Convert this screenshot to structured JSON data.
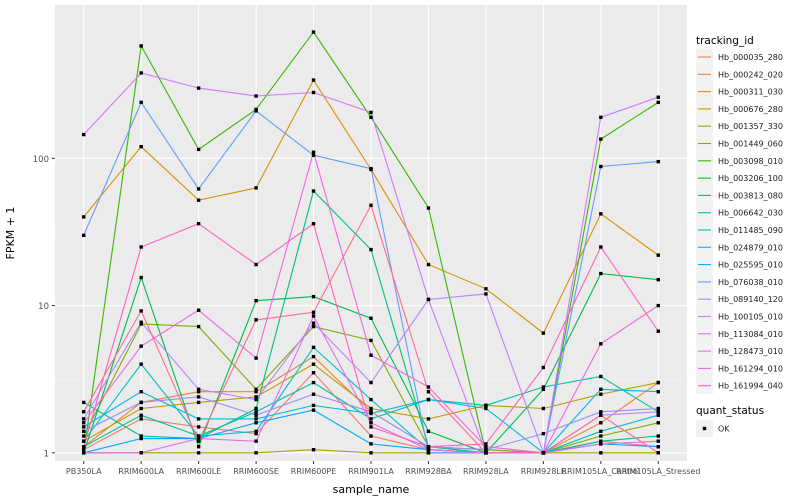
{
  "chart_data": {
    "type": "line",
    "x_label": "sample_name",
    "y_label": "FPKM + 1",
    "y_scale": "log10",
    "y_range": [
      0.88,
      1100
    ],
    "y_ticks": [
      1,
      10,
      100
    ],
    "y_tick_labels": [
      "1",
      "10",
      "100"
    ],
    "categories": [
      "PB350LA",
      "RRIM600LA",
      "RRIM600LE",
      "RRIM600SE",
      "RRIM600PE",
      "RRIM901LA",
      "RRIM928BA",
      "RRIM928LA",
      "RRIM928LE",
      "RRIM105LA_Control",
      "RRIM105LA_Stressed"
    ],
    "category_labels": [
      "PB350LA",
      "RRIM600LA",
      "RRIM600LE",
      "RRIM600SE",
      "RRIM600PE",
      "RRIM901LA",
      "RRIM928BA",
      "RRIM928LA",
      "RRIM928LE",
      "RRIM105LA_Control",
      "RRIM105LA_Stressed"
    ],
    "legend_title": "tracking_id",
    "legend2_title": "quant_status",
    "legend2_entries": [
      "OK"
    ],
    "legend_position": "right",
    "panel_background": "#EBEBEB",
    "grid": true,
    "series": [
      {
        "name": "Hb_000035_280",
        "color": "#F8766D",
        "values": [
          1.05,
          1.7,
          1.5,
          1.35,
          3.5,
          1.3,
          1.05,
          1.0,
          1.0,
          1.2,
          1.1
        ]
      },
      {
        "name": "Hb_000242_020",
        "color": "#EA8331",
        "values": [
          1.1,
          2.2,
          2.6,
          2.6,
          4.5,
          1.9,
          1.1,
          1.05,
          1.0,
          1.6,
          3.0
        ]
      },
      {
        "name": "Hb_000311_030",
        "color": "#D89000",
        "values": [
          40,
          120,
          52,
          63,
          340,
          84,
          19,
          13,
          6.5,
          42,
          22
        ]
      },
      {
        "name": "Hb_000676_280",
        "color": "#C09B00",
        "values": [
          1.2,
          2.0,
          2.2,
          2.4,
          4.0,
          2.0,
          1.7,
          2.1,
          2.0,
          2.5,
          3.0
        ]
      },
      {
        "name": "Hb_001357_330",
        "color": "#A3A500",
        "values": [
          1.0,
          1.0,
          1.0,
          1.0,
          1.05,
          1.0,
          1.0,
          1.0,
          1.0,
          1.0,
          1.0
        ]
      },
      {
        "name": "Hb_001449_060",
        "color": "#7CAE00",
        "values": [
          1.3,
          7.5,
          7.2,
          2.7,
          7.2,
          5.8,
          1.1,
          1.05,
          1.0,
          1.3,
          1.6
        ]
      },
      {
        "name": "Hb_003098_010",
        "color": "#39B600",
        "values": [
          1.0,
          580,
          115,
          215,
          720,
          190,
          46,
          1.0,
          1.0,
          135,
          240
        ]
      },
      {
        "name": "Hb_003206_100",
        "color": "#00BB4E",
        "values": [
          1.0,
          15.5,
          1.1,
          10.8,
          11.5,
          8.2,
          1.4,
          1.0,
          2.7,
          16.5,
          15
        ]
      },
      {
        "name": "Hb_003813_080",
        "color": "#00BF7D",
        "values": [
          2.2,
          1.3,
          1.25,
          2.0,
          60,
          24,
          1.1,
          1.0,
          1.0,
          1.2,
          1.3
        ]
      },
      {
        "name": "Hb_006642_030",
        "color": "#00C1A3",
        "values": [
          1.1,
          1.8,
          1.3,
          1.9,
          3.0,
          1.7,
          2.3,
          2.1,
          2.8,
          3.3,
          1.9
        ]
      },
      {
        "name": "Hb_011485_090",
        "color": "#00BFC4",
        "values": [
          1.2,
          4.0,
          1.3,
          1.4,
          5.2,
          2.3,
          1.05,
          1.0,
          1.0,
          1.4,
          1.8
        ]
      },
      {
        "name": "Hb_024879_010",
        "color": "#00B8E7",
        "values": [
          1.5,
          2.6,
          1.7,
          1.7,
          2.1,
          1.85,
          2.3,
          2.0,
          1.0,
          2.7,
          2.6
        ]
      },
      {
        "name": "Hb_025595_010",
        "color": "#00A9FF",
        "values": [
          1.0,
          1.25,
          1.25,
          1.6,
          1.95,
          1.15,
          1.05,
          1.0,
          1.0,
          1.15,
          1.1
        ]
      },
      {
        "name": "Hb_076038_010",
        "color": "#619CFF",
        "values": [
          30,
          240,
          62,
          210,
          105,
          85,
          1.0,
          1.0,
          1.0,
          88,
          95
        ]
      },
      {
        "name": "Hb_089140_120",
        "color": "#9590FF",
        "values": [
          1.4,
          2.2,
          2.4,
          1.8,
          2.5,
          1.9,
          1.1,
          1.05,
          1.35,
          1.9,
          2.0
        ]
      },
      {
        "name": "Hb_100105_010",
        "color": "#B983FF",
        "values": [
          1.7,
          7.7,
          2.7,
          2.3,
          7.6,
          3.0,
          11,
          12,
          1.0,
          1.8,
          1.9
        ]
      },
      {
        "name": "Hb_113084_010",
        "color": "#D575FE",
        "values": [
          145,
          380,
          300,
          265,
          280,
          205,
          11,
          1.0,
          1.0,
          190,
          260
        ]
      },
      {
        "name": "Hb_128473_010",
        "color": "#E76BF3",
        "values": [
          1.0,
          1.0,
          1.25,
          1.2,
          8.5,
          1.6,
          1.05,
          1.0,
          1.0,
          1.15,
          1.2
        ]
      },
      {
        "name": "Hb_161294_010",
        "color": "#F564E3",
        "values": [
          1.6,
          5.3,
          9.3,
          4.4,
          110,
          4.6,
          2.8,
          1.1,
          1.0,
          5.5,
          10
        ]
      },
      {
        "name": "Hb_161994_040",
        "color": "#FF62BC",
        "values": [
          1.1,
          25,
          36,
          19,
          36,
          1.5,
          1.1,
          1.15,
          3.8,
          25,
          6.7
        ]
      },
      {
        "name": "",
        "color": "#FF6C90",
        "values": [
          1.9,
          9.2,
          1.2,
          8.0,
          9.0,
          48,
          2.6,
          1.0,
          1.0,
          1.8,
          1.0
        ]
      }
    ]
  }
}
